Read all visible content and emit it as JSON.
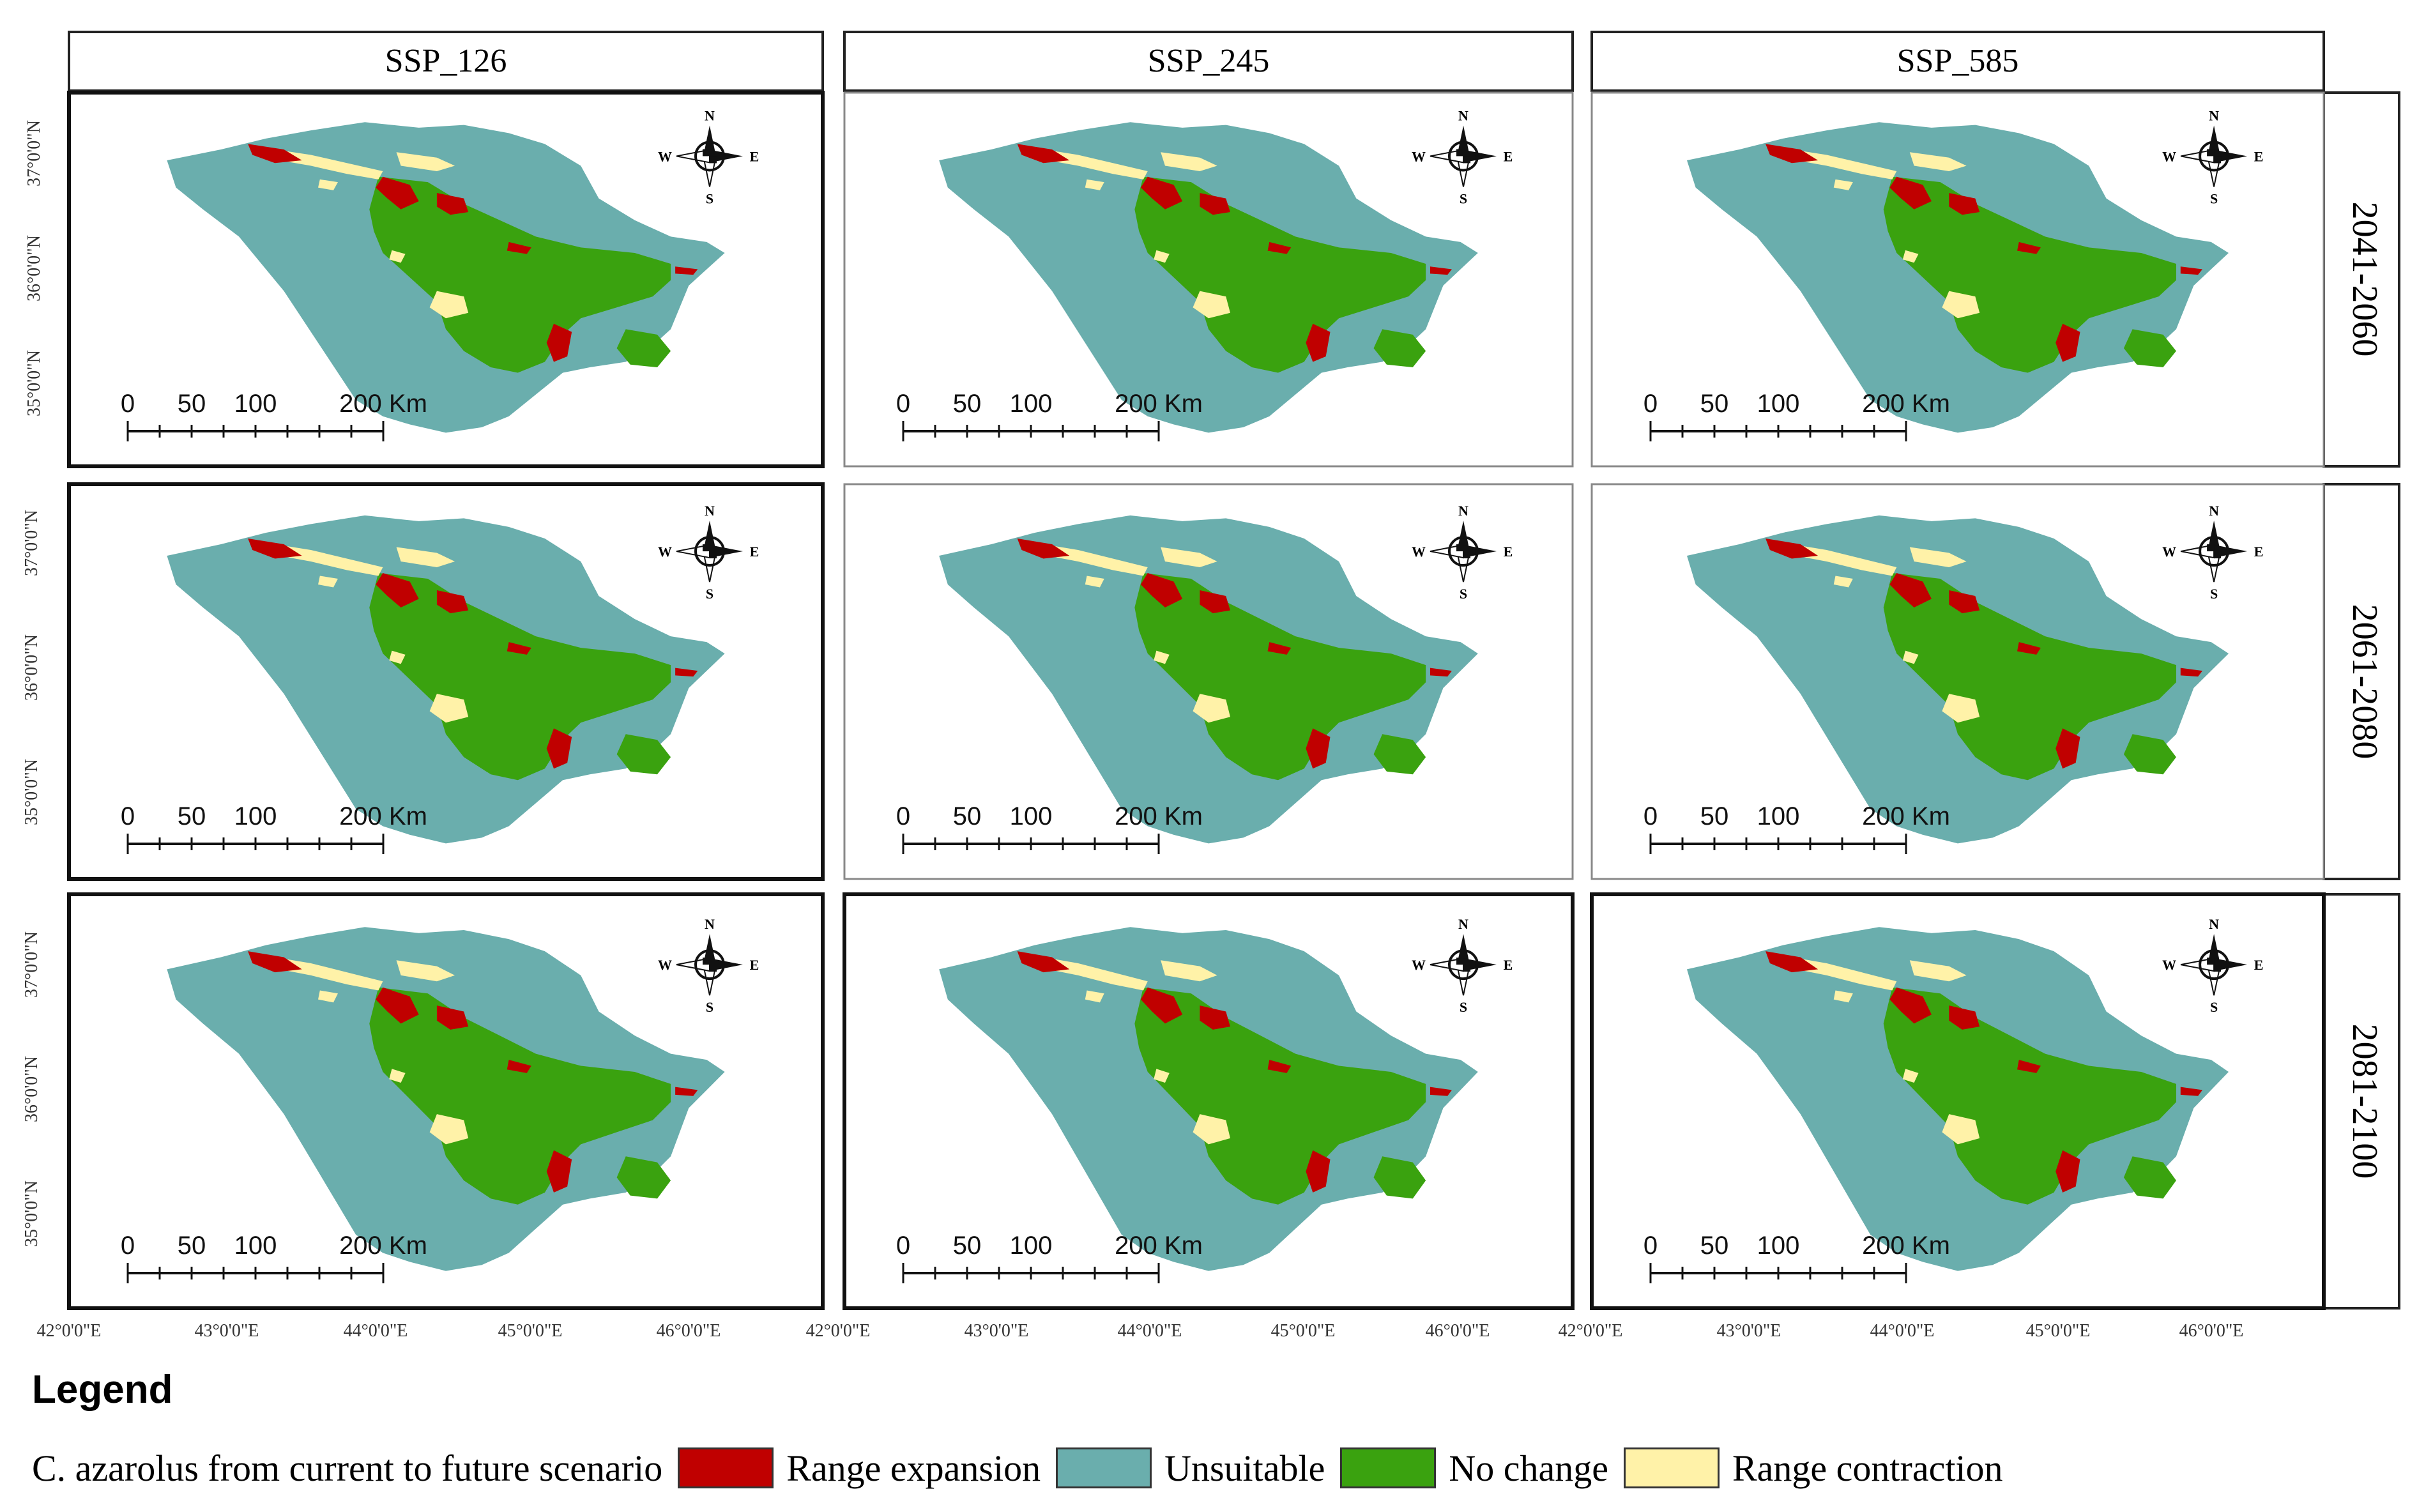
{
  "columns": [
    "SSP_126",
    "SSP_245",
    "SSP_585"
  ],
  "rows": [
    "2041-2060",
    "2061-2080",
    "2081-2100"
  ],
  "lat_ticks": [
    "37°0'0\"N",
    "36°0'0\"N",
    "35°0'0\"N"
  ],
  "lon_ticks": [
    "42°0'0\"E",
    "43°0'0\"E",
    "44°0'0\"E",
    "45°0'0\"E",
    "46°0'0\"E"
  ],
  "scale_bar": {
    "labels": [
      "0",
      "50",
      "100",
      "200 Km"
    ],
    "values_km": [
      0,
      50,
      100,
      200
    ]
  },
  "north_arrow": {
    "n": "N",
    "s": "S",
    "e": "E",
    "w": "W"
  },
  "legend": {
    "title": "Legend",
    "description": "C. azarolus from current to future scenario",
    "items": [
      {
        "label": "Range expansion",
        "color": "#c00000"
      },
      {
        "label": "Unsuitable",
        "color": "#6aaead"
      },
      {
        "label": "No change",
        "color": "#3aa20f"
      },
      {
        "label": "Range contraction",
        "color": "#fff2a8"
      }
    ]
  },
  "colors": {
    "unsuitable": "#6aaead",
    "no_change": "#3aa20f",
    "expansion": "#c00000",
    "contraction": "#fff2a8"
  }
}
